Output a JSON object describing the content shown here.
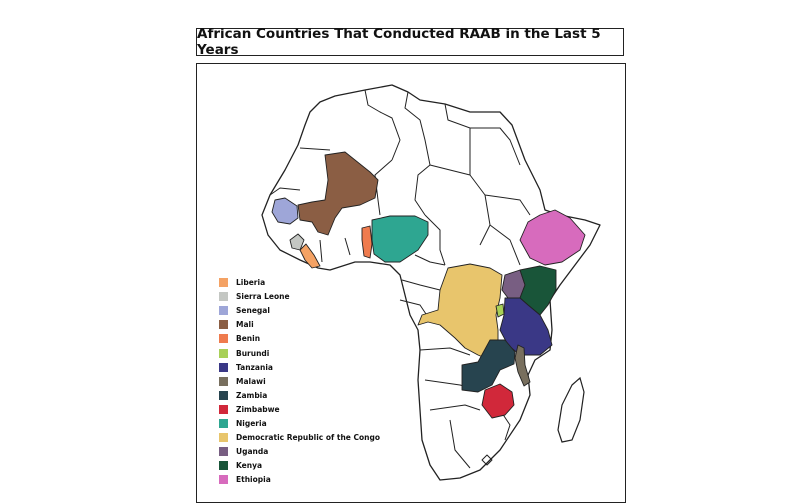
{
  "title": "African Countries That Conducted RAAB in the Last 5 Years",
  "legend": [
    {
      "country": "Liberia",
      "color": "#f4a264"
    },
    {
      "country": "Sierra Leone",
      "color": "#c4c7c3"
    },
    {
      "country": "Senegal",
      "color": "#9ea6d8"
    },
    {
      "country": "Mali",
      "color": "#8b5e44"
    },
    {
      "country": "Benin",
      "color": "#ef7b4e"
    },
    {
      "country": "Burundi",
      "color": "#a8d058"
    },
    {
      "country": "Tanzania",
      "color": "#3a3886"
    },
    {
      "country": "Malawi",
      "color": "#786f5e"
    },
    {
      "country": "Zambia",
      "color": "#27444f"
    },
    {
      "country": "Zimbabwe",
      "color": "#d1283a"
    },
    {
      "country": "Nigeria",
      "color": "#2ea691"
    },
    {
      "country": "Democratic Republic of the Congo",
      "color": "#e8c56c"
    },
    {
      "country": "Uganda",
      "color": "#785e82"
    },
    {
      "country": "Kenya",
      "color": "#195539"
    },
    {
      "country": "Ethiopia",
      "color": "#d76bbd"
    }
  ]
}
